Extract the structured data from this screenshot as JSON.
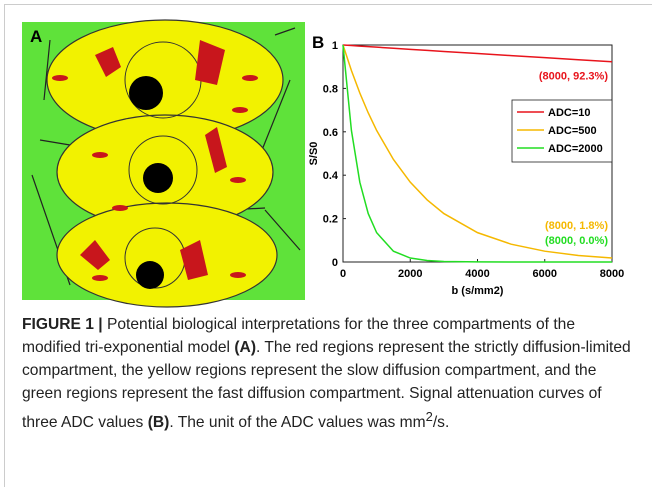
{
  "panel_a": {
    "label": "A"
  },
  "chart_data": {
    "type": "line",
    "panel_label": "B",
    "xlabel": "b (s/mm2)",
    "ylabel": "S/S0",
    "x": [
      0,
      250,
      500,
      750,
      1000,
      1500,
      2000,
      2500,
      3000,
      4000,
      5000,
      6000,
      7000,
      8000
    ],
    "series": [
      {
        "name": "ADC=10",
        "color": "#e8141c",
        "values": [
          1,
          0.9975,
          0.995,
          0.9925,
          0.99,
          0.985,
          0.98,
          0.975,
          0.97,
          0.961,
          0.951,
          0.942,
          0.932,
          0.923
        ]
      },
      {
        "name": "ADC=500",
        "color": "#f5b800",
        "values": [
          1,
          0.8825,
          0.7788,
          0.6873,
          0.6065,
          0.4724,
          0.3679,
          0.2865,
          0.2231,
          0.1353,
          0.0821,
          0.0498,
          0.0302,
          0.0183
        ]
      },
      {
        "name": "ADC=2000",
        "color": "#22dd22",
        "values": [
          1,
          0.6065,
          0.3679,
          0.2231,
          0.1353,
          0.0498,
          0.0183,
          0.0067,
          0.0025,
          0.0003,
          0,
          0,
          0,
          0
        ]
      }
    ],
    "annotations": [
      {
        "text": "(8000, 92.3%)",
        "color": "#e8141c"
      },
      {
        "text": "(8000, 1.8%)",
        "color": "#f5b800"
      },
      {
        "text": "(8000, 0.0%)",
        "color": "#22dd22"
      }
    ],
    "xlim": [
      0,
      8000
    ],
    "xticks": [
      0,
      2000,
      4000,
      6000,
      8000
    ],
    "ylim": [
      0,
      1
    ],
    "yticks": [
      0,
      0.2,
      0.4,
      0.6,
      0.8,
      1
    ],
    "legend": "right"
  },
  "caption": [
    "FIGURE 1 |",
    " Potential biological interpretations for the three compartments of the modified tri-exponential model ",
    "(A)",
    ". The red regions represent the strictly diffusion-limited compartment, the yellow regions represent the slow diffusion compartment, and the green regions represent the fast diffusion compartment. Signal attenuation curves of three ADC values ",
    "(B)",
    ". The unit of the ADC values was mm",
    "2",
    "/s."
  ]
}
